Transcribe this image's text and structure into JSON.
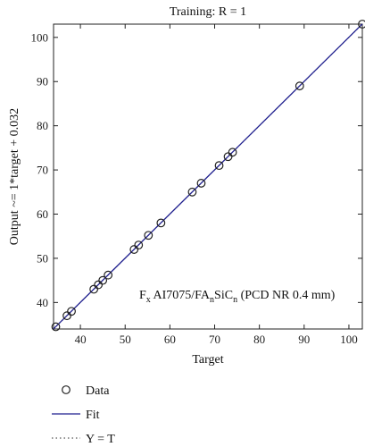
{
  "chart_data": {
    "type": "scatter",
    "title": "Training: R = 1",
    "xlabel": "Target",
    "ylabel": "Output ~= 1*target + 0.032",
    "xlim": [
      34,
      103
    ],
    "ylim": [
      34,
      103
    ],
    "xticks": [
      40,
      50,
      60,
      70,
      80,
      90,
      100
    ],
    "yticks": [
      40,
      50,
      60,
      70,
      80,
      90,
      100
    ],
    "grid": false,
    "annotation": {
      "prefix": "F",
      "prefix_sub": "x",
      "text1": " AI7075/FA",
      "sub1": "n",
      "text2": "SiC",
      "sub2": "n",
      "text3": " (PCD NR 0.4 mm)"
    },
    "series": [
      {
        "name": "Data",
        "marker": "circle",
        "color": "#222222",
        "points": [
          [
            34.5,
            34.5
          ],
          [
            37.0,
            37.0
          ],
          [
            38.0,
            38.0
          ],
          [
            43.0,
            43.0
          ],
          [
            44.0,
            44.0
          ],
          [
            45.0,
            45.0
          ],
          [
            46.2,
            46.2
          ],
          [
            52.0,
            52.0
          ],
          [
            53.0,
            53.0
          ],
          [
            55.2,
            55.2
          ],
          [
            58.0,
            58.0
          ],
          [
            65.0,
            65.0
          ],
          [
            67.0,
            67.0
          ],
          [
            71.0,
            71.0
          ],
          [
            73.0,
            73.0
          ],
          [
            74.0,
            74.0
          ],
          [
            89.0,
            89.0
          ],
          [
            103.0,
            103.0
          ]
        ]
      },
      {
        "name": "Fit",
        "type": "line",
        "color": "#1f1f8f",
        "slope": 1,
        "intercept": 0.032
      },
      {
        "name": "Y = T",
        "type": "line",
        "style": "dotted",
        "color": "#555555",
        "slope": 1,
        "intercept": 0
      }
    ],
    "legend": "bottom-left"
  }
}
